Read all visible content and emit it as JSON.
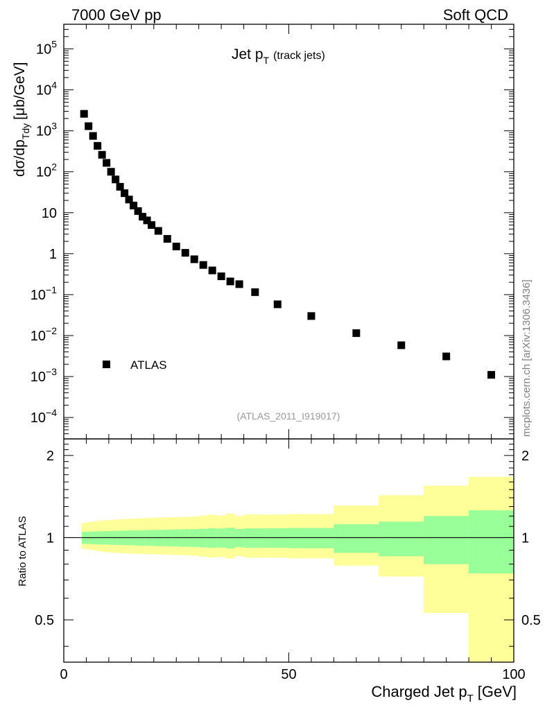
{
  "header": {
    "left": "7000 GeV pp",
    "right": "Soft QCD"
  },
  "watermark": "mcplots.cern.ch [arXiv:1306.3436]",
  "analysis_id": "(ATLAS_2011_I919017)",
  "colors": {
    "band_inner": "#99ff99",
    "band_outer": "#ffff99",
    "markers": "#000000"
  },
  "chart_data": [
    {
      "type": "scatter",
      "name": "main",
      "title": "Jet p",
      "title_sub": "T",
      "title_note": "(track jets)",
      "ylabel": "dσ/dp",
      "ylabel_sub": "Tdy",
      "ylabel_unit": "[μb/GeV]",
      "yscale": "log",
      "xlim": [
        0,
        100
      ],
      "ylim": [
        3e-05,
        400000
      ],
      "yticks": [
        {
          "value": 100000,
          "base": "10",
          "exp": "5"
        },
        {
          "value": 10000,
          "base": "10",
          "exp": "4"
        },
        {
          "value": 1000,
          "base": "10",
          "exp": "3"
        },
        {
          "value": 100,
          "base": "10",
          "exp": "2"
        },
        {
          "value": 10,
          "base": "10",
          "exp": ""
        },
        {
          "value": 1,
          "base": "1",
          "exp": ""
        },
        {
          "value": 0.1,
          "base": "10",
          "exp": "−1"
        },
        {
          "value": 0.01,
          "base": "10",
          "exp": "−2"
        },
        {
          "value": 0.001,
          "base": "10",
          "exp": "−3"
        },
        {
          "value": 0.0001,
          "base": "10",
          "exp": "−4"
        }
      ],
      "legend": {
        "label": "ATLAS",
        "position": "bottom-left"
      },
      "series": [
        {
          "name": "ATLAS",
          "x": [
            4.5,
            5.5,
            6.5,
            7.5,
            8.5,
            9.5,
            10.5,
            11.5,
            12.5,
            13.5,
            14.5,
            15.5,
            16.5,
            17.5,
            18.5,
            19.5,
            21,
            23,
            25,
            27,
            29,
            31,
            33,
            35,
            37,
            39,
            42.5,
            47.5,
            55,
            65,
            75,
            85,
            95
          ],
          "y": [
            2600,
            1300,
            750,
            430,
            260,
            165,
            100,
            65,
            43,
            30,
            21,
            15,
            11,
            8.0,
            6.5,
            5.0,
            3.6,
            2.3,
            1.5,
            1.05,
            0.73,
            0.53,
            0.39,
            0.28,
            0.21,
            0.18,
            0.115,
            0.058,
            0.03,
            0.0115,
            0.0058,
            0.0031,
            0.0011
          ]
        }
      ]
    },
    {
      "type": "area",
      "name": "ratio",
      "ylabel": "Ratio to ATLAS",
      "xlabel": "Charged Jet p",
      "xlabel_sub": "T",
      "xlabel_unit": "[GeV]",
      "xlim": [
        0,
        100
      ],
      "ylim": [
        0.35,
        2.3
      ],
      "xticks": [
        {
          "value": 0,
          "label": "0"
        },
        {
          "value": 50,
          "label": "50"
        },
        {
          "value": 100,
          "label": "100"
        }
      ],
      "yticks": [
        {
          "value": 0.5,
          "label": "0.5"
        },
        {
          "value": 1,
          "label": "1"
        },
        {
          "value": 2,
          "label": "2"
        }
      ],
      "reference_line": 1,
      "bins": [
        {
          "lo": 4,
          "hi": 5,
          "in_lo": 0.95,
          "in_hi": 1.05,
          "out_lo": 0.91,
          "out_hi": 1.13
        },
        {
          "lo": 5,
          "hi": 6,
          "in_lo": 0.948,
          "in_hi": 1.052,
          "out_lo": 0.905,
          "out_hi": 1.14
        },
        {
          "lo": 6,
          "hi": 7,
          "in_lo": 0.946,
          "in_hi": 1.054,
          "out_lo": 0.9,
          "out_hi": 1.145
        },
        {
          "lo": 7,
          "hi": 8,
          "in_lo": 0.945,
          "in_hi": 1.055,
          "out_lo": 0.895,
          "out_hi": 1.15
        },
        {
          "lo": 8,
          "hi": 9,
          "in_lo": 0.944,
          "in_hi": 1.056,
          "out_lo": 0.89,
          "out_hi": 1.155
        },
        {
          "lo": 9,
          "hi": 10,
          "in_lo": 0.943,
          "in_hi": 1.057,
          "out_lo": 0.885,
          "out_hi": 1.158
        },
        {
          "lo": 10,
          "hi": 11,
          "in_lo": 0.942,
          "in_hi": 1.058,
          "out_lo": 0.882,
          "out_hi": 1.161
        },
        {
          "lo": 11,
          "hi": 12,
          "in_lo": 0.941,
          "in_hi": 1.059,
          "out_lo": 0.88,
          "out_hi": 1.164
        },
        {
          "lo": 12,
          "hi": 13,
          "in_lo": 0.94,
          "in_hi": 1.06,
          "out_lo": 0.878,
          "out_hi": 1.167
        },
        {
          "lo": 13,
          "hi": 14,
          "in_lo": 0.939,
          "in_hi": 1.061,
          "out_lo": 0.876,
          "out_hi": 1.17
        },
        {
          "lo": 14,
          "hi": 15,
          "in_lo": 0.938,
          "in_hi": 1.062,
          "out_lo": 0.875,
          "out_hi": 1.172
        },
        {
          "lo": 15,
          "hi": 16,
          "in_lo": 0.937,
          "in_hi": 1.063,
          "out_lo": 0.874,
          "out_hi": 1.174
        },
        {
          "lo": 16,
          "hi": 17,
          "in_lo": 0.936,
          "in_hi": 1.064,
          "out_lo": 0.872,
          "out_hi": 1.176
        },
        {
          "lo": 17,
          "hi": 18,
          "in_lo": 0.935,
          "in_hi": 1.065,
          "out_lo": 0.871,
          "out_hi": 1.178
        },
        {
          "lo": 18,
          "hi": 19,
          "in_lo": 0.934,
          "in_hi": 1.066,
          "out_lo": 0.87,
          "out_hi": 1.18
        },
        {
          "lo": 19,
          "hi": 20,
          "in_lo": 0.933,
          "in_hi": 1.067,
          "out_lo": 0.869,
          "out_hi": 1.182
        },
        {
          "lo": 20,
          "hi": 22,
          "in_lo": 0.932,
          "in_hi": 1.068,
          "out_lo": 0.868,
          "out_hi": 1.184
        },
        {
          "lo": 22,
          "hi": 24,
          "in_lo": 0.93,
          "in_hi": 1.07,
          "out_lo": 0.866,
          "out_hi": 1.186
        },
        {
          "lo": 24,
          "hi": 26,
          "in_lo": 0.928,
          "in_hi": 1.072,
          "out_lo": 0.864,
          "out_hi": 1.188
        },
        {
          "lo": 26,
          "hi": 28,
          "in_lo": 0.926,
          "in_hi": 1.074,
          "out_lo": 0.862,
          "out_hi": 1.19
        },
        {
          "lo": 28,
          "hi": 30,
          "in_lo": 0.925,
          "in_hi": 1.075,
          "out_lo": 0.858,
          "out_hi": 1.195
        },
        {
          "lo": 30,
          "hi": 32,
          "in_lo": 0.922,
          "in_hi": 1.078,
          "out_lo": 0.852,
          "out_hi": 1.205
        },
        {
          "lo": 32,
          "hi": 34,
          "in_lo": 0.918,
          "in_hi": 1.082,
          "out_lo": 0.846,
          "out_hi": 1.213
        },
        {
          "lo": 34,
          "hi": 36,
          "in_lo": 0.92,
          "in_hi": 1.08,
          "out_lo": 0.85,
          "out_hi": 1.205
        },
        {
          "lo": 36,
          "hi": 38,
          "in_lo": 0.913,
          "in_hi": 1.087,
          "out_lo": 0.838,
          "out_hi": 1.225
        },
        {
          "lo": 38,
          "hi": 40,
          "in_lo": 0.924,
          "in_hi": 1.076,
          "out_lo": 0.856,
          "out_hi": 1.2
        },
        {
          "lo": 40,
          "hi": 45,
          "in_lo": 0.919,
          "in_hi": 1.081,
          "out_lo": 0.845,
          "out_hi": 1.215
        },
        {
          "lo": 45,
          "hi": 50,
          "in_lo": 0.918,
          "in_hi": 1.082,
          "out_lo": 0.845,
          "out_hi": 1.215
        },
        {
          "lo": 50,
          "hi": 60,
          "in_lo": 0.915,
          "in_hi": 1.085,
          "out_lo": 0.84,
          "out_hi": 1.22
        },
        {
          "lo": 60,
          "hi": 70,
          "in_lo": 0.88,
          "in_hi": 1.12,
          "out_lo": 0.79,
          "out_hi": 1.31
        },
        {
          "lo": 70,
          "hi": 80,
          "in_lo": 0.855,
          "in_hi": 1.145,
          "out_lo": 0.72,
          "out_hi": 1.43
        },
        {
          "lo": 80,
          "hi": 90,
          "in_lo": 0.8,
          "in_hi": 1.2,
          "out_lo": 0.53,
          "out_hi": 1.55
        },
        {
          "lo": 90,
          "hi": 100,
          "in_lo": 0.74,
          "in_hi": 1.26,
          "out_lo": 0.35,
          "out_hi": 1.67
        }
      ]
    }
  ]
}
